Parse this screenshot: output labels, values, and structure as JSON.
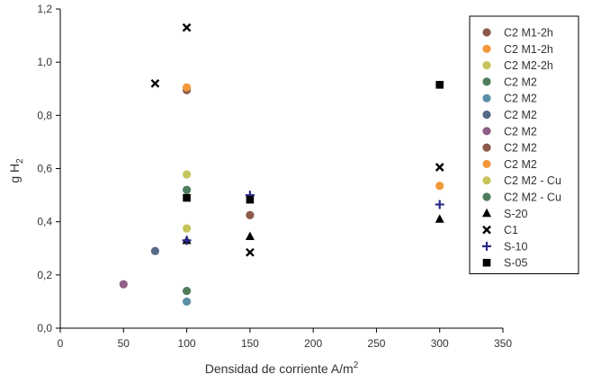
{
  "chart_data": {
    "type": "scatter",
    "title": "",
    "xlabel": {
      "main": "Densidad de corriente A/m",
      "sup": "2"
    },
    "ylabel": {
      "main": "g H",
      "sub": "2"
    },
    "xlim": [
      0,
      350
    ],
    "ylim": [
      0,
      1.2
    ],
    "xticks": [
      0,
      50,
      100,
      150,
      200,
      250,
      300,
      350
    ],
    "yticks": [
      0.0,
      0.2,
      0.4,
      0.6,
      0.8,
      1.0,
      1.2
    ],
    "xtick_labels": [
      "0",
      "50",
      "100",
      "150",
      "200",
      "250",
      "300",
      "350"
    ],
    "ytick_labels": [
      "0,0",
      "0,2",
      "0,4",
      "0,6",
      "0,8",
      "1,0",
      "1,2"
    ],
    "grid": false,
    "legend_position": "right",
    "series": [
      {
        "name": "C2 M1-2h",
        "marker": "circle",
        "color": "#8b5a4a",
        "points": [
          [
            100,
            0.895
          ]
        ]
      },
      {
        "name": "C2 M1-2h",
        "marker": "circle",
        "color": "#f2973a",
        "points": [
          [
            100,
            0.905
          ]
        ]
      },
      {
        "name": "C2 M2-2h",
        "marker": "circle",
        "color": "#c6c45a",
        "points": [
          [
            100,
            0.375
          ]
        ]
      },
      {
        "name": "C2 M2",
        "marker": "circle",
        "color": "#4f7d5c",
        "points": [
          [
            100,
            0.14
          ]
        ]
      },
      {
        "name": "C2 M2",
        "marker": "circle",
        "color": "#5b8fa8",
        "points": [
          [
            100,
            0.1
          ]
        ]
      },
      {
        "name": "C2 M2",
        "marker": "circle",
        "color": "#566a87",
        "points": [
          [
            75,
            0.29
          ]
        ]
      },
      {
        "name": "C2 M2",
        "marker": "circle",
        "color": "#8e5f87",
        "points": [
          [
            50,
            0.165
          ]
        ]
      },
      {
        "name": "C2 M2",
        "marker": "circle",
        "color": "#8b5a4a",
        "points": [
          [
            150,
            0.425
          ]
        ]
      },
      {
        "name": "C2 M2",
        "marker": "circle",
        "color": "#f2973a",
        "points": [
          [
            300,
            0.535
          ]
        ]
      },
      {
        "name": "C2 M2 - Cu",
        "marker": "circle",
        "color": "#c6c45a",
        "points": [
          [
            100,
            0.578
          ]
        ]
      },
      {
        "name": "C2 M2 - Cu",
        "marker": "circle",
        "color": "#4f7d5c",
        "points": [
          [
            100,
            0.52
          ]
        ]
      },
      {
        "name": "S-20",
        "marker": "triangle",
        "color": "#000000",
        "points": [
          [
            100,
            0.33
          ],
          [
            150,
            0.345
          ],
          [
            300,
            0.41
          ]
        ]
      },
      {
        "name": "C1",
        "marker": "x",
        "color": "#000000",
        "points": [
          [
            75,
            0.92
          ],
          [
            100,
            1.13
          ],
          [
            150,
            0.285
          ],
          [
            300,
            0.605
          ]
        ]
      },
      {
        "name": "S-10",
        "marker": "plus",
        "color": "#2b2a8c",
        "points": [
          [
            100,
            0.33
          ],
          [
            150,
            0.5
          ],
          [
            300,
            0.465
          ]
        ]
      },
      {
        "name": "S-05",
        "marker": "square",
        "color": "#000000",
        "points": [
          [
            100,
            0.49
          ],
          [
            150,
            0.483
          ],
          [
            300,
            0.915
          ]
        ]
      }
    ]
  }
}
